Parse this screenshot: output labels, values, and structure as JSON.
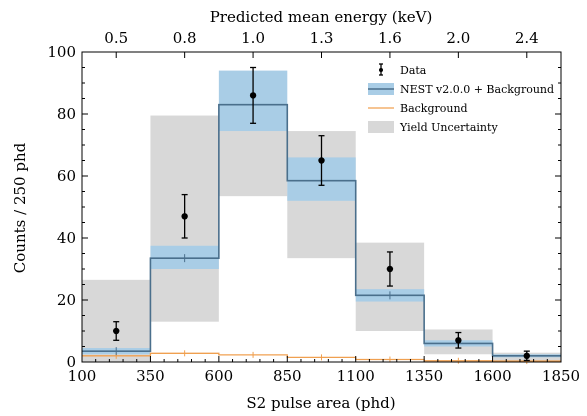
{
  "chart_data": {
    "type": "histogram",
    "xlabel": "S2 pulse area (phd)",
    "ylabel": "Counts / 250 phd",
    "top_xlabel": "Predicted mean energy (keV)",
    "xlim": [
      100,
      1850
    ],
    "ylim": [
      0,
      100
    ],
    "x_ticks": [
      100,
      350,
      600,
      850,
      1100,
      1350,
      1600,
      1850
    ],
    "x_tick_labels": [
      "100",
      "350",
      "600",
      "850",
      "1100",
      "1350",
      "1600",
      "1850"
    ],
    "y_ticks": [
      0,
      20,
      40,
      60,
      80,
      100
    ],
    "y_tick_labels": [
      "0",
      "20",
      "40",
      "60",
      "80",
      "100"
    ],
    "top_ticks": [
      {
        "label": "0.5",
        "x": 225
      },
      {
        "label": "0.8",
        "x": 475
      },
      {
        "label": "1.0",
        "x": 725
      },
      {
        "label": "1.3",
        "x": 975
      },
      {
        "label": "1.6",
        "x": 1225
      },
      {
        "label": "2.0",
        "x": 1475
      },
      {
        "label": "2.4",
        "x": 1725
      }
    ],
    "bin_edges": [
      100,
      350,
      600,
      850,
      1100,
      1350,
      1600,
      1850
    ],
    "nest_values": [
      3.5,
      33.5,
      83,
      58.5,
      21.5,
      6,
      2
    ],
    "nest_band": [
      [
        2.5,
        4.5
      ],
      [
        30,
        37.5
      ],
      [
        74.5,
        94
      ],
      [
        52,
        66
      ],
      [
        19.5,
        23.5
      ],
      [
        5,
        7
      ],
      [
        1.5,
        2.5
      ]
    ],
    "yield_band": [
      [
        0,
        26.5
      ],
      [
        13,
        79.5
      ],
      [
        53.5,
        75
      ],
      [
        33.5,
        74.5
      ],
      [
        10,
        38.5
      ],
      [
        2.5,
        10.5
      ],
      [
        0,
        3
      ]
    ],
    "background_values": [
      2,
      2.8,
      2.3,
      1.5,
      0.8,
      0.4,
      0.3
    ],
    "data_points": [
      {
        "x": 225,
        "y": 10,
        "lo": 7,
        "hi": 13
      },
      {
        "x": 475,
        "y": 47,
        "lo": 40,
        "hi": 54
      },
      {
        "x": 725,
        "y": 86,
        "lo": 77,
        "hi": 95
      },
      {
        "x": 975,
        "y": 65,
        "lo": 57,
        "hi": 73
      },
      {
        "x": 1225,
        "y": 30,
        "lo": 24.5,
        "hi": 35.5
      },
      {
        "x": 1475,
        "y": 7,
        "lo": 4.5,
        "hi": 9.5
      },
      {
        "x": 1725,
        "y": 2,
        "lo": 0.5,
        "hi": 3.5
      }
    ],
    "legend": {
      "position": "top-right",
      "data_label": "Data",
      "nest_label": "NEST v2.0.0 + Background",
      "background_label": "Background",
      "yield_label": "Yield Uncertainty"
    },
    "colors": {
      "nest_line": "#4a6f8c",
      "nest_band": "#a9cde6",
      "yield_band": "#d8d8d8",
      "background_line": "#f0a050",
      "data": "#000000"
    }
  }
}
